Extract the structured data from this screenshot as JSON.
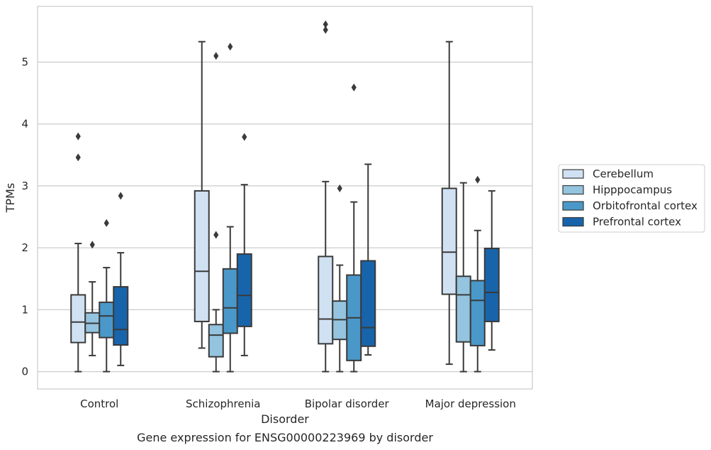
{
  "chart_data": {
    "type": "box",
    "title": "",
    "caption": "Gene expression for ENSG00000223969 by disorder",
    "xlabel": "Disorder",
    "ylabel": "TPMs",
    "ylim": [
      -0.28,
      5.9
    ],
    "yticks": [
      0,
      1,
      2,
      3,
      4,
      5
    ],
    "grid": true,
    "legend_position": "right",
    "categories": [
      "Control",
      "Schizophrenia",
      "Bipolar disorder",
      "Major depression"
    ],
    "series": [
      {
        "name": "Cerebellum",
        "color": "#d0e1f2",
        "boxes": [
          {
            "whisker_low": 0.0,
            "q1": 0.47,
            "median": 0.8,
            "q3": 1.24,
            "whisker_high": 2.07,
            "outliers": [
              3.46,
              3.8
            ]
          },
          {
            "whisker_low": 0.38,
            "q1": 0.81,
            "median": 1.62,
            "q3": 2.92,
            "whisker_high": 5.33,
            "outliers": []
          },
          {
            "whisker_low": 0.0,
            "q1": 0.45,
            "median": 0.85,
            "q3": 1.86,
            "whisker_high": 3.07,
            "outliers": [
              5.52,
              5.61
            ]
          },
          {
            "whisker_low": 0.12,
            "q1": 1.25,
            "median": 1.93,
            "q3": 2.96,
            "whisker_high": 5.33,
            "outliers": []
          }
        ]
      },
      {
        "name": "Hipppocampus",
        "color": "#94c4df",
        "boxes": [
          {
            "whisker_low": 0.26,
            "q1": 0.63,
            "median": 0.78,
            "q3": 0.95,
            "whisker_high": 1.45,
            "outliers": [
              2.05
            ]
          },
          {
            "whisker_low": 0.0,
            "q1": 0.24,
            "median": 0.59,
            "q3": 0.76,
            "whisker_high": 1.0,
            "outliers": [
              2.21,
              5.1
            ]
          },
          {
            "whisker_low": 0.0,
            "q1": 0.52,
            "median": 0.84,
            "q3": 1.14,
            "whisker_high": 1.72,
            "outliers": [
              2.96
            ]
          },
          {
            "whisker_low": 0.0,
            "q1": 0.48,
            "median": 1.24,
            "q3": 1.54,
            "whisker_high": 3.05,
            "outliers": []
          }
        ]
      },
      {
        "name": "Orbitofrontal cortex",
        "color": "#4a98c9",
        "boxes": [
          {
            "whisker_low": 0.0,
            "q1": 0.55,
            "median": 0.9,
            "q3": 1.12,
            "whisker_high": 1.68,
            "outliers": [
              2.4
            ]
          },
          {
            "whisker_low": 0.0,
            "q1": 0.62,
            "median": 1.03,
            "q3": 1.66,
            "whisker_high": 2.34,
            "outliers": [
              5.25
            ]
          },
          {
            "whisker_low": 0.0,
            "q1": 0.18,
            "median": 0.87,
            "q3": 1.56,
            "whisker_high": 2.74,
            "outliers": [
              4.59
            ]
          },
          {
            "whisker_low": 0.0,
            "q1": 0.42,
            "median": 1.15,
            "q3": 1.47,
            "whisker_high": 2.28,
            "outliers": [
              3.1
            ]
          }
        ]
      },
      {
        "name": "Prefrontal cortex",
        "color": "#1764ab",
        "boxes": [
          {
            "whisker_low": 0.1,
            "q1": 0.43,
            "median": 0.68,
            "q3": 1.37,
            "whisker_high": 1.92,
            "outliers": [
              2.84
            ]
          },
          {
            "whisker_low": 0.26,
            "q1": 0.73,
            "median": 1.23,
            "q3": 1.9,
            "whisker_high": 3.02,
            "outliers": [
              3.79
            ]
          },
          {
            "whisker_low": 0.27,
            "q1": 0.41,
            "median": 0.71,
            "q3": 1.79,
            "whisker_high": 3.35,
            "outliers": []
          },
          {
            "whisker_low": 0.35,
            "q1": 0.81,
            "median": 1.28,
            "q3": 1.99,
            "whisker_high": 2.92,
            "outliers": []
          }
        ]
      }
    ]
  }
}
